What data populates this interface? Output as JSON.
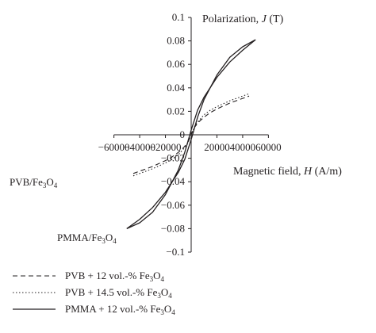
{
  "chart_data": {
    "type": "line",
    "xlabel": {
      "text": "Magnetic field, ",
      "var": "H",
      "unit": " (A/m)"
    },
    "ylabel": {
      "text": "Polarization, ",
      "var": "J",
      "unit": " (T)"
    },
    "xlim": [
      -60000,
      60000
    ],
    "ylim": [
      -0.1,
      0.1
    ],
    "x_ticks": [
      "−60000",
      "−40000",
      "−20000",
      "0",
      "20000",
      "40000",
      "60000"
    ],
    "x_tick_values": [
      -60000,
      -40000,
      -20000,
      0,
      20000,
      40000,
      60000
    ],
    "y_ticks": [
      "0.1",
      "0.08",
      "0.06",
      "0.04",
      "0.02",
      "0",
      "−0.02",
      "−0.04",
      "−0.06",
      "−0.08",
      "−0.1"
    ],
    "y_tick_values": [
      0.1,
      0.08,
      0.06,
      0.04,
      0.02,
      0,
      -0.02,
      -0.04,
      -0.06,
      -0.08,
      -0.1
    ],
    "grid": false,
    "legend_position": "bottom-left",
    "annotations": [
      {
        "text": "PVB/Fe",
        "sub": "3",
        "text2": "O",
        "sub2": "4"
      },
      {
        "text": "PMMA/Fe",
        "sub": "3",
        "text2": "O",
        "sub2": "4"
      }
    ],
    "series": [
      {
        "name": "PVB + 12 vol.-% Fe3O4",
        "legend": {
          "text": "PVB + 12 vol.-% Fe",
          "sub": "3",
          "text2": "O",
          "sub2": "4"
        },
        "style": "dashed",
        "x": [
          -45000,
          -40000,
          -30000,
          -20000,
          -15000,
          -10000,
          -6000,
          -3000,
          -1500,
          0,
          1500,
          3000,
          6000,
          10000,
          15000,
          20000,
          30000,
          40000,
          45000
        ],
        "y": [
          -0.033,
          -0.031,
          -0.027,
          -0.022,
          -0.019,
          -0.015,
          -0.011,
          -0.007,
          -0.004,
          0.0,
          0.004,
          0.007,
          0.011,
          0.015,
          0.019,
          0.022,
          0.027,
          0.031,
          0.033
        ]
      },
      {
        "name": "PVB + 14.5 vol.-% Fe3O4",
        "legend": {
          "text": "PVB + 14.5 vol.-% Fe",
          "sub": "3",
          "text2": "O",
          "sub2": "4"
        },
        "style": "dotted",
        "x": [
          -45000,
          -40000,
          -30000,
          -20000,
          -15000,
          -10000,
          -6000,
          -3000,
          -1500,
          0,
          1500,
          3000,
          6000,
          10000,
          15000,
          20000,
          30000,
          40000,
          45000
        ],
        "y": [
          -0.035,
          -0.033,
          -0.029,
          -0.024,
          -0.021,
          -0.017,
          -0.012,
          -0.008,
          -0.004,
          0.0,
          0.004,
          0.008,
          0.012,
          0.017,
          0.021,
          0.024,
          0.029,
          0.033,
          0.035
        ]
      },
      {
        "name": "PMMA + 12 vol.-% Fe3O4",
        "legend": {
          "text": "PMMA + 12 vol.-% Fe",
          "sub": "3",
          "text2": "O",
          "sub2": "4"
        },
        "style": "solid",
        "branches": [
          {
            "x": [
              -50000,
              -40000,
              -30000,
              -20000,
              -10000,
              -5000,
              0,
              5000,
              10000,
              20000,
              30000,
              40000,
              50000
            ],
            "y": [
              -0.08,
              -0.072,
              -0.062,
              -0.049,
              -0.032,
              -0.021,
              -0.004,
              0.015,
              0.03,
              0.051,
              0.066,
              0.075,
              0.081
            ]
          },
          {
            "x": [
              50000,
              40000,
              30000,
              20000,
              10000,
              5000,
              0,
              -5000,
              -10000,
              -20000,
              -30000,
              -40000,
              -50000
            ],
            "y": [
              0.081,
              0.072,
              0.062,
              0.049,
              0.032,
              0.021,
              0.004,
              -0.015,
              -0.03,
              -0.051,
              -0.066,
              -0.075,
              -0.08
            ]
          }
        ]
      }
    ]
  }
}
